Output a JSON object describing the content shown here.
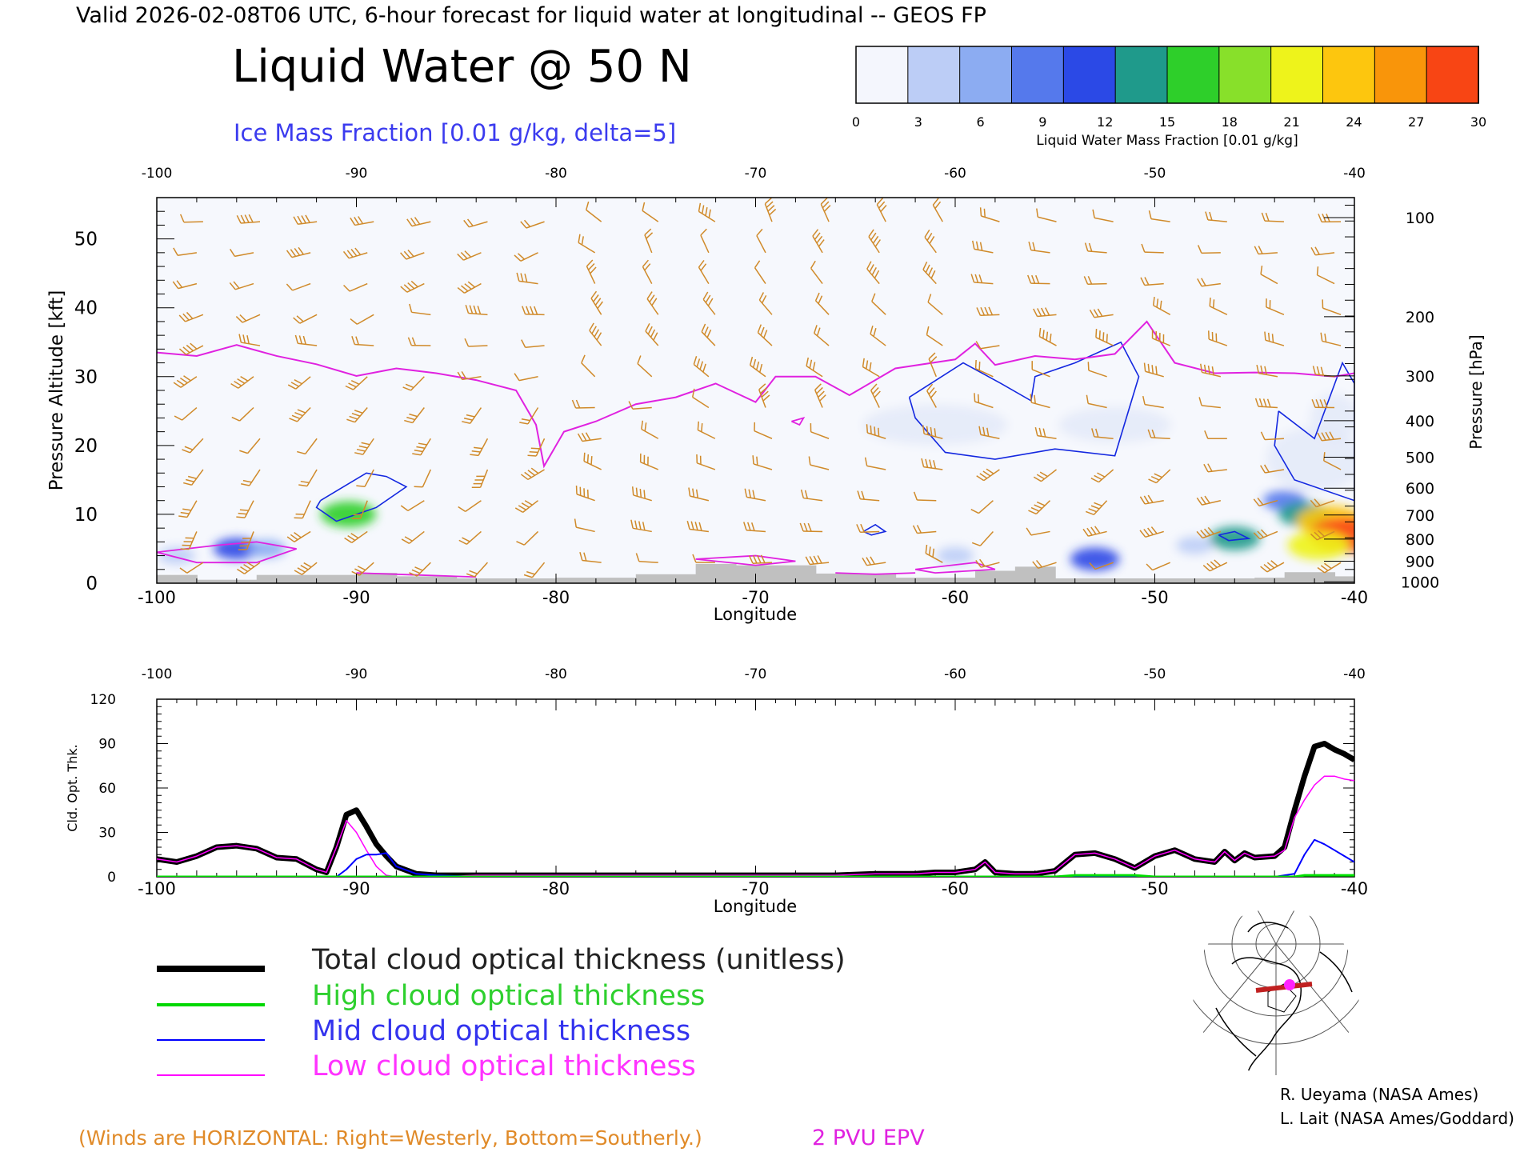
{
  "header": {
    "valid_line": "Valid 2026-02-08T06 UTC, 6-hour forecast for liquid water at longitudinal -- GEOS FP",
    "title": "Liquid Water @ 50 N",
    "subtitle": "Ice Mass Fraction [0.01 g/kg, delta=5]"
  },
  "colorbar": {
    "ticks": [
      "0",
      "3",
      "6",
      "9",
      "12",
      "15",
      "18",
      "21",
      "24",
      "27",
      "30"
    ],
    "label": "Liquid Water Mass Fraction [0.01 g/kg]",
    "colors": [
      "#f4f6fd",
      "#bccdf6",
      "#8cacf2",
      "#5579ec",
      "#2b49e6",
      "#1f9a8b",
      "#2ecf2a",
      "#88e02a",
      "#eef31b",
      "#fdc60e",
      "#f9950a",
      "#f84514"
    ]
  },
  "chart_data": [
    {
      "type": "heatmap",
      "xlabel": "Longitude",
      "ylabel": "Pressure Altitude [kft]",
      "ylabel_right": "Pressure [hPa]",
      "xlim": [
        -100,
        -40
      ],
      "ylim": [
        0,
        56
      ],
      "x_ticks": [
        "-100",
        "-90",
        "-80",
        "-70",
        "-60",
        "-50",
        "-40"
      ],
      "y_ticks": [
        "0",
        "10",
        "20",
        "30",
        "40",
        "50"
      ],
      "pressure_ticks": [
        {
          "label": "100",
          "kft": 53.1
        },
        {
          "label": "200",
          "kft": 38.7
        },
        {
          "label": "300",
          "kft": 30.1
        },
        {
          "label": "400",
          "kft": 23.6
        },
        {
          "label": "500",
          "kft": 18.3
        },
        {
          "label": "600",
          "kft": 13.8
        },
        {
          "label": "700",
          "kft": 9.9
        },
        {
          "label": "800",
          "kft": 6.4
        },
        {
          "label": "900",
          "kft": 3.2
        },
        {
          "label": "1000",
          "kft": 0.2
        }
      ],
      "pv_2pvu_kft": [
        [
          -100,
          33.5
        ],
        [
          -98,
          33
        ],
        [
          -96,
          34.6
        ],
        [
          -94,
          33
        ],
        [
          -92,
          31.8
        ],
        [
          -90,
          30.1
        ],
        [
          -88,
          31.2
        ],
        [
          -86,
          30.5
        ],
        [
          -84,
          29.5
        ],
        [
          -82,
          28
        ],
        [
          -81,
          23
        ],
        [
          -80.6,
          17
        ],
        [
          -79.6,
          22
        ],
        [
          -78,
          23.5
        ],
        [
          -76,
          26
        ],
        [
          -74,
          27
        ],
        [
          -72,
          29
        ],
        [
          -70,
          26.3
        ],
        [
          -69,
          30
        ],
        [
          -67,
          30
        ],
        [
          -65.3,
          27.3
        ],
        [
          -63,
          31.2
        ],
        [
          -60,
          32.5
        ],
        [
          -59,
          34.8
        ],
        [
          -58,
          31.7
        ],
        [
          -56,
          33
        ],
        [
          -54,
          32.5
        ],
        [
          -52,
          33.3
        ],
        [
          -50.4,
          38
        ],
        [
          -49,
          32
        ],
        [
          -47,
          30.5
        ],
        [
          -45,
          30.6
        ],
        [
          -43,
          30.5
        ],
        [
          -41,
          30
        ],
        [
          -40,
          30.5
        ]
      ],
      "liquid_water_blobs": [
        {
          "lon": -96,
          "kft": 5,
          "value": 10
        },
        {
          "lon": -94.5,
          "kft": 5,
          "value": 5
        },
        {
          "lon": -99,
          "kft": 4,
          "value": 4
        },
        {
          "lon": -90.4,
          "kft": 10,
          "value": 16
        },
        {
          "lon": -60,
          "kft": 4,
          "value": 4
        },
        {
          "lon": -53,
          "kft": 3.5,
          "value": 12
        },
        {
          "lon": -48,
          "kft": 5.5,
          "value": 4
        },
        {
          "lon": -46,
          "kft": 6.5,
          "value": 13
        },
        {
          "lon": -43.5,
          "kft": 12,
          "value": 8
        },
        {
          "lon": -42.5,
          "kft": 10,
          "value": 14
        },
        {
          "lon": -41.2,
          "kft": 9,
          "value": 24
        },
        {
          "lon": -40.4,
          "kft": 7,
          "value": 29
        },
        {
          "lon": -41.8,
          "kft": 5.5,
          "value": 20
        }
      ]
    },
    {
      "type": "line",
      "xlabel": "Longitude",
      "ylabel": "Cld. Opt. Thk.",
      "xlim": [
        -100,
        -40
      ],
      "ylim": [
        0,
        120
      ],
      "x_ticks": [
        "-100",
        "-90",
        "-80",
        "-70",
        "-60",
        "-50",
        "-40"
      ],
      "y_ticks": [
        "0",
        "30",
        "60",
        "90",
        "120"
      ],
      "x": [
        -100,
        -99,
        -98,
        -97,
        -96,
        -95,
        -94,
        -93,
        -92,
        -91.5,
        -91,
        -90.5,
        -90,
        -89.5,
        -89,
        -88.5,
        -88,
        -87,
        -86,
        -84,
        -82,
        -80,
        -78,
        -76,
        -74,
        -72,
        -70,
        -68,
        -66,
        -64,
        -62,
        -61,
        -60,
        -59,
        -58.5,
        -58,
        -57,
        -56,
        -55,
        -54,
        -53,
        -52,
        -51,
        -50,
        -49,
        -48,
        -47,
        -46.5,
        -46,
        -45.5,
        -45,
        -44,
        -43.5,
        -43,
        -42.5,
        -42,
        -41.5,
        -41,
        -40.5,
        -40
      ],
      "series": [
        {
          "name": "Total cloud optical thickness (unitless)",
          "color": "#000000",
          "values": [
            12,
            10,
            14,
            20,
            21,
            19,
            13,
            12,
            5,
            3,
            20,
            42,
            45,
            34,
            22,
            14,
            7,
            2,
            1,
            1,
            1,
            1,
            1,
            1,
            1,
            1,
            1,
            1,
            1,
            2,
            2,
            3,
            3,
            5,
            10,
            3,
            2,
            2,
            4,
            15,
            16,
            12,
            6,
            14,
            18,
            12,
            10,
            17,
            11,
            16,
            13,
            14,
            20,
            45,
            68,
            88,
            90,
            86,
            83,
            79
          ]
        },
        {
          "name": "High cloud optical thickness",
          "color": "#00e000",
          "values": [
            0,
            0,
            0,
            0,
            0,
            0,
            0,
            0,
            0,
            0,
            0,
            0,
            0,
            0,
            0,
            0,
            0,
            0,
            0,
            0,
            0,
            0,
            0,
            0,
            0,
            0,
            0,
            0,
            0,
            0,
            0,
            0,
            0,
            0,
            0,
            0,
            0,
            0,
            0,
            1,
            1,
            1,
            1,
            0,
            0,
            0,
            0,
            0,
            0,
            0,
            0,
            0,
            0,
            0,
            1,
            1,
            1,
            1,
            1,
            1
          ]
        },
        {
          "name": "Mid cloud optical thickness",
          "color": "#0000ff",
          "values": [
            0,
            0,
            0,
            0,
            0,
            0,
            0,
            0,
            0,
            0,
            0,
            5,
            12,
            15,
            15,
            16,
            7,
            2,
            1,
            0,
            0,
            0,
            0,
            0,
            0,
            0,
            0,
            0,
            0,
            0,
            0,
            0,
            0,
            0,
            0,
            0,
            0,
            0,
            0,
            0,
            0,
            0,
            0,
            0,
            0,
            0,
            0,
            0,
            0,
            0,
            0,
            0,
            1,
            2,
            15,
            25,
            22,
            18,
            14,
            10
          ]
        },
        {
          "name": "Low cloud optical thickness",
          "color": "#ff00ff",
          "values": [
            12,
            10,
            14,
            20,
            21,
            19,
            13,
            12,
            5,
            3,
            20,
            38,
            30,
            18,
            7,
            1,
            0,
            0,
            0,
            1,
            1,
            1,
            1,
            1,
            1,
            1,
            1,
            1,
            1,
            2,
            2,
            3,
            3,
            5,
            10,
            3,
            2,
            2,
            4,
            15,
            16,
            12,
            6,
            14,
            18,
            12,
            10,
            17,
            11,
            16,
            13,
            14,
            18,
            40,
            52,
            62,
            68,
            68,
            66,
            65
          ]
        }
      ]
    }
  ],
  "legend": {
    "items": [
      {
        "label": "Total cloud optical thickness (unitless)",
        "color": "#000000"
      },
      {
        "label": "High cloud optical thickness",
        "color": "#22cc22"
      },
      {
        "label": "Mid cloud optical thickness",
        "color": "#3333ee"
      },
      {
        "label": "Low cloud optical thickness",
        "color": "#ff33ff"
      }
    ]
  },
  "credits": {
    "line1": "R. Ueyama (NASA Ames)",
    "line2": "L. Lait (NASA Ames/Goddard)"
  },
  "footer": {
    "winds_note": "(Winds are HORIZONTAL: Right=Westerly, Bottom=Southerly.)",
    "epv_label": "2 PVU EPV"
  },
  "map": {
    "name": "north-polar-stereographic-locator-map"
  }
}
